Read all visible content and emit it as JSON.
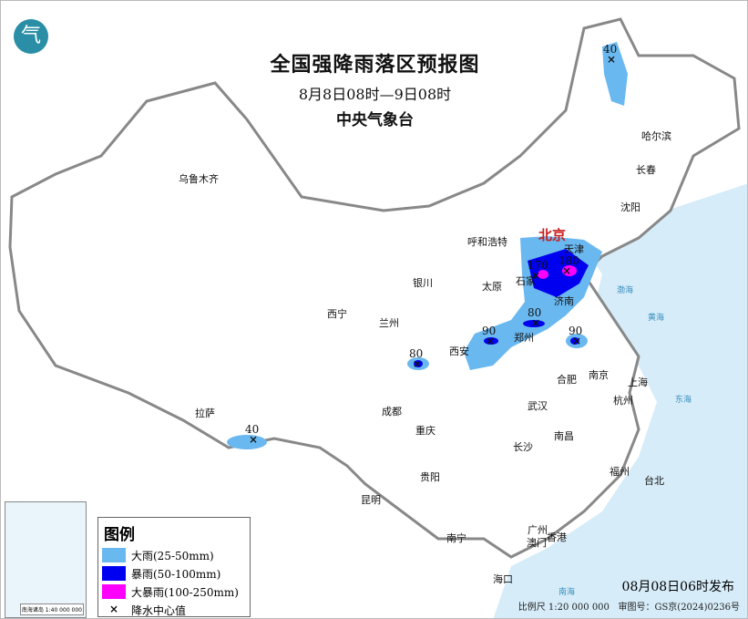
{
  "header": {
    "title": "全国强降雨落区预报图",
    "period": "8月8日08时—9日08时",
    "issuer": "中央气象台",
    "logo_icon": "cma-logo"
  },
  "colors": {
    "heavy_rain": "#6ab8f0",
    "rainstorm": "#0000f0",
    "heavy_rainstorm": "#ff00ff",
    "sea": "#d6ecf8",
    "border": "#888888",
    "capital": "#c81e1e"
  },
  "cities": [
    {
      "name": "乌鲁木齐"
    },
    {
      "name": "哈尔滨"
    },
    {
      "name": "长春"
    },
    {
      "name": "沈阳"
    },
    {
      "name": "呼和浩特"
    },
    {
      "name": "北京"
    },
    {
      "name": "天津"
    },
    {
      "name": "石家"
    },
    {
      "name": "太原"
    },
    {
      "name": "济南"
    },
    {
      "name": "银川"
    },
    {
      "name": "西宁"
    },
    {
      "name": "兰州"
    },
    {
      "name": "西安"
    },
    {
      "name": "郑州"
    },
    {
      "name": "合肥"
    },
    {
      "name": "南京"
    },
    {
      "name": "上海"
    },
    {
      "name": "杭州"
    },
    {
      "name": "武汉"
    },
    {
      "name": "成都"
    },
    {
      "name": "重庆"
    },
    {
      "name": "拉萨"
    },
    {
      "name": "长沙"
    },
    {
      "name": "南昌"
    },
    {
      "name": "福州"
    },
    {
      "name": "台北"
    },
    {
      "name": "贵阳"
    },
    {
      "name": "昆明"
    },
    {
      "name": "南宁"
    },
    {
      "name": "广州"
    },
    {
      "name": "澳门"
    },
    {
      "name": "香港"
    },
    {
      "name": "海口"
    }
  ],
  "rain_centers": [
    {
      "value": "40"
    },
    {
      "value": "170"
    },
    {
      "value": "180"
    },
    {
      "value": "80"
    },
    {
      "value": "90"
    },
    {
      "value": "90"
    },
    {
      "value": "80"
    },
    {
      "value": "40"
    }
  ],
  "seas": [
    "渤海",
    "黄海",
    "东海",
    "南海"
  ],
  "legend": {
    "title": "图例",
    "items": [
      {
        "label": "大雨(25-50mm)",
        "color": "#6ab8f0"
      },
      {
        "label": "暴雨(50-100mm)",
        "color": "#0000f0"
      },
      {
        "label": "大暴雨(100-250mm)",
        "color": "#ff00ff"
      },
      {
        "label": "降水中心值",
        "symbol": "×"
      }
    ]
  },
  "inset": {
    "label": "南海诸岛 1:40 000 000"
  },
  "footer": {
    "issued": "08月08日06时发布",
    "scale": "比例尺 1:20 000 000",
    "review_no": "审图号：GS京(2024)0236号"
  }
}
